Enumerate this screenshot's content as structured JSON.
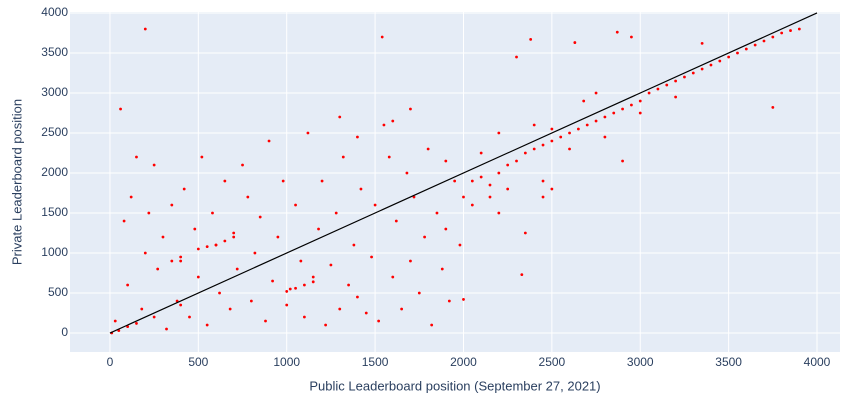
{
  "chart_data": {
    "type": "scatter",
    "xlabel": "Public Leaderboard position (September 27, 2021)",
    "ylabel": "Private Leaderboard position",
    "xlim": [
      -226,
      4130
    ],
    "ylim": [
      -237,
      4012
    ],
    "xticks": [
      0,
      500,
      1000,
      1500,
      2000,
      2500,
      3000,
      3500,
      4000
    ],
    "yticks": [
      0,
      500,
      1000,
      1500,
      2000,
      2500,
      3000,
      3500,
      4000
    ],
    "grid": true,
    "background": "#e5ecf6",
    "series": [
      {
        "color": "#ff0000",
        "mode": "markers",
        "x": [
          2050,
          2100,
          2150,
          2200,
          2250,
          2300,
          2350,
          2400,
          2450,
          2500,
          2550,
          2600,
          2650,
          2700,
          2750,
          2800,
          2850,
          2900,
          2950,
          3000,
          3050,
          3100,
          3150,
          3200,
          3250,
          3300,
          3350,
          3400,
          3450,
          3500,
          3550,
          3600,
          3650,
          3700,
          3750,
          3800,
          3850,
          3900,
          200,
          1540,
          2380,
          2630,
          2870,
          2950,
          3350,
          3750,
          2330,
          2000,
          2680,
          2300,
          2200,
          2450,
          2350,
          30,
          60,
          80,
          100,
          120,
          150,
          180,
          200,
          220,
          250,
          270,
          300,
          320,
          350,
          380,
          400,
          420,
          450,
          480,
          500,
          520,
          550,
          580,
          600,
          620,
          650,
          680,
          700,
          720,
          750,
          780,
          800,
          820,
          850,
          880,
          900,
          920,
          950,
          980,
          1000,
          1020,
          1050,
          1080,
          1100,
          1120,
          1150,
          1180,
          1200,
          1220,
          1250,
          1280,
          1300,
          1320,
          1350,
          1380,
          1400,
          1420,
          1450,
          1480,
          1500,
          1520,
          1550,
          1580,
          1600,
          1620,
          1650,
          1680,
          1700,
          1720,
          1750,
          1780,
          1800,
          1820,
          1850,
          1880,
          1900,
          1920,
          1950,
          1980,
          2000,
          10,
          50,
          100,
          150,
          250,
          400,
          1000,
          1050,
          1100,
          1150,
          500,
          550,
          600,
          650,
          700,
          350,
          400,
          1600,
          1400,
          1300,
          1700,
          2200,
          2400,
          2600,
          2800,
          3000,
          3200,
          2750,
          2500,
          2900,
          2100,
          1900,
          2150,
          2050,
          2250,
          2500,
          2450
        ],
        "values": [
          1900,
          1950,
          1850,
          2000,
          2100,
          2150,
          2250,
          2300,
          2350,
          2400,
          2450,
          2500,
          2550,
          2600,
          2650,
          2700,
          2750,
          2800,
          2850,
          2900,
          3000,
          3050,
          3100,
          3150,
          3200,
          3250,
          3300,
          3350,
          3400,
          3450,
          3500,
          3550,
          3600,
          3650,
          3700,
          3750,
          3780,
          3800,
          3800,
          3700,
          3670,
          3630,
          3760,
          3700,
          3620,
          2820,
          730,
          420,
          2900,
          3450,
          1500,
          1700,
          1250,
          150,
          2800,
          1400,
          600,
          1700,
          2200,
          300,
          1000,
          1500,
          2100,
          800,
          1200,
          50,
          1600,
          400,
          900,
          1800,
          200,
          1300,
          700,
          2200,
          100,
          1500,
          1100,
          500,
          1900,
          300,
          1250,
          800,
          2100,
          1700,
          400,
          1000,
          1450,
          150,
          2400,
          650,
          1200,
          1900,
          350,
          550,
          1600,
          900,
          200,
          2500,
          700,
          1300,
          1900,
          100,
          850,
          1500,
          300,
          2200,
          600,
          1100,
          450,
          1800,
          250,
          950,
          1600,
          150,
          2600,
          2200,
          700,
          1400,
          300,
          2000,
          900,
          1700,
          500,
          1200,
          2300,
          100,
          1500,
          800,
          1300,
          400,
          1900,
          1100,
          1700,
          0,
          30,
          80,
          120,
          200,
          350,
          520,
          560,
          600,
          640,
          1050,
          1080,
          1100,
          1150,
          1200,
          900,
          950,
          2650,
          2450,
          2700,
          2800,
          2500,
          2600,
          2300,
          2450,
          2750,
          2950,
          3000,
          2550,
          2150,
          2250,
          2150,
          1700,
          1600,
          1800,
          1800,
          1900
        ]
      },
      {
        "color": "#000000",
        "mode": "lines",
        "x": [
          0,
          4000
        ],
        "values": [
          0,
          4000
        ]
      }
    ]
  }
}
